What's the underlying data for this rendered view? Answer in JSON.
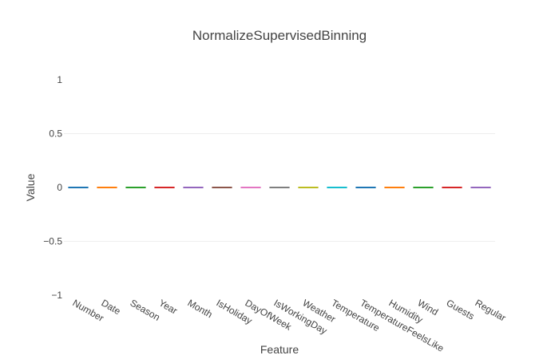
{
  "chart_data": {
    "type": "bar",
    "title": "NormalizeSupervisedBinning",
    "xlabel": "Feature",
    "ylabel": "Value",
    "categories": [
      "Number",
      "Date",
      "Season",
      "Year",
      "Month",
      "IsHoliday",
      "DayOfWeek",
      "IsWorkingDay",
      "Weather",
      "Temperature",
      "TemperatureFeelsLike",
      "Humidity",
      "Wind",
      "Guests",
      "Regular"
    ],
    "values": [
      0,
      0,
      0,
      0,
      0,
      0,
      0,
      0,
      0,
      0,
      0,
      0,
      0,
      0,
      0
    ],
    "ylim": [
      -1,
      1
    ],
    "yticks": [
      -1,
      -0.5,
      0,
      0.5,
      1
    ],
    "ytick_labels": [
      "−1",
      "−0.5",
      "0",
      "0.5",
      "1"
    ],
    "grid": true,
    "colors": [
      "#1f77b4",
      "#ff7f0e",
      "#2ca02c",
      "#d62728",
      "#9467bd",
      "#8c564b",
      "#e377c2",
      "#7f7f7f",
      "#bcbd22",
      "#17becf",
      "#1f77b4",
      "#ff7f0e",
      "#2ca02c",
      "#d62728",
      "#9467bd"
    ]
  }
}
